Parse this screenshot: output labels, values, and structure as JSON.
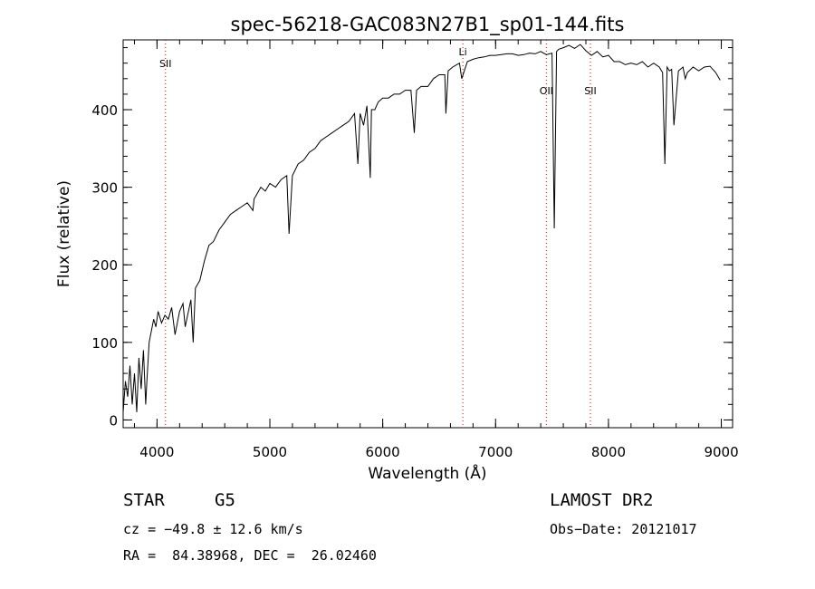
{
  "chart_data": {
    "type": "line",
    "title": "spec-56218-GAC083N27B1_sp01-144.fits",
    "xlabel": "Wavelength (Å)",
    "ylabel": "Flux (relative)",
    "xlim": [
      3700,
      9100
    ],
    "ylim": [
      -10,
      490
    ],
    "x_ticks": [
      4000,
      5000,
      6000,
      7000,
      8000,
      9000
    ],
    "y_ticks": [
      0,
      100,
      200,
      300,
      400
    ],
    "x_tick_labels": [
      "4000",
      "5000",
      "6000",
      "7000",
      "8000",
      "9000"
    ],
    "y_tick_labels": [
      "0",
      "100",
      "200",
      "300",
      "400"
    ],
    "grid": false,
    "line_color": "#000000",
    "marker_color": "#cc0000",
    "series": [
      {
        "x": [
          3700,
          3720,
          3740,
          3760,
          3780,
          3800,
          3820,
          3840,
          3860,
          3880,
          3900,
          3910,
          3930,
          3950,
          3970,
          3990,
          4010,
          4040,
          4070,
          4100,
          4130,
          4160,
          4200,
          4230,
          4250,
          4300,
          4320,
          4340,
          4380,
          4420,
          4460,
          4500,
          4550,
          4600,
          4650,
          4700,
          4750,
          4800,
          4850,
          4860,
          4880,
          4920,
          4960,
          5000,
          5050,
          5100,
          5150,
          5170,
          5200,
          5250,
          5300,
          5350,
          5400,
          5450,
          5500,
          5550,
          5600,
          5650,
          5700,
          5750,
          5780,
          5800,
          5830,
          5860,
          5890,
          5900,
          5930,
          5960,
          6000,
          6050,
          6100,
          6150,
          6200,
          6250,
          6280,
          6300,
          6340,
          6400,
          6450,
          6500,
          6550,
          6560,
          6580,
          6620,
          6680,
          6700,
          6750,
          6800,
          6850,
          6900,
          6950,
          7000,
          7050,
          7100,
          7150,
          7200,
          7250,
          7300,
          7350,
          7400,
          7450,
          7500,
          7520,
          7540,
          7560,
          7600,
          7650,
          7700,
          7750,
          7800,
          7850,
          7900,
          7950,
          8000,
          8050,
          8100,
          8150,
          8200,
          8250,
          8300,
          8350,
          8400,
          8450,
          8480,
          8500,
          8520,
          8540,
          8560,
          8580,
          8620,
          8660,
          8680,
          8700,
          8750,
          8800,
          8850,
          8900,
          8950,
          8990
        ],
        "y": [
          10,
          50,
          30,
          70,
          20,
          60,
          10,
          80,
          40,
          90,
          20,
          50,
          100,
          115,
          130,
          120,
          140,
          125,
          135,
          130,
          145,
          110,
          140,
          150,
          120,
          155,
          100,
          170,
          180,
          205,
          225,
          230,
          245,
          255,
          265,
          270,
          275,
          280,
          270,
          285,
          290,
          300,
          295,
          305,
          300,
          310,
          315,
          240,
          315,
          330,
          335,
          345,
          350,
          360,
          365,
          370,
          375,
          380,
          385,
          395,
          330,
          395,
          380,
          405,
          312,
          400,
          400,
          410,
          415,
          415,
          420,
          420,
          425,
          425,
          370,
          425,
          430,
          430,
          440,
          445,
          445,
          395,
          450,
          455,
          460,
          440,
          462,
          465,
          467,
          468,
          470,
          470,
          471,
          472,
          472,
          470,
          471,
          473,
          472,
          475,
          471,
          473,
          247,
          475,
          478,
          480,
          483,
          479,
          484,
          476,
          470,
          475,
          468,
          470,
          462,
          462,
          458,
          460,
          458,
          462,
          455,
          460,
          455,
          448,
          330,
          455,
          450,
          452,
          380,
          450,
          455,
          440,
          448,
          455,
          450,
          455,
          456,
          448,
          438
        ]
      }
    ],
    "markers": [
      {
        "x": 4075,
        "label": "SII",
        "label_y": 455
      },
      {
        "x": 6710,
        "label": "Li",
        "label_y": 470
      },
      {
        "x": 7450,
        "label": "OII",
        "label_y": 420
      },
      {
        "x": 7840,
        "label": "SII",
        "label_y": 420
      }
    ]
  },
  "info": {
    "object_class": "STAR",
    "subclass": "G5",
    "survey": "LAMOST DR2",
    "redshift_line": "cz = −49.8 ± 12.6 km/s",
    "obs_date_line": "Obs−Date: 20121017",
    "coords_line": "RA =  84.38968, DEC =  26.02460"
  }
}
